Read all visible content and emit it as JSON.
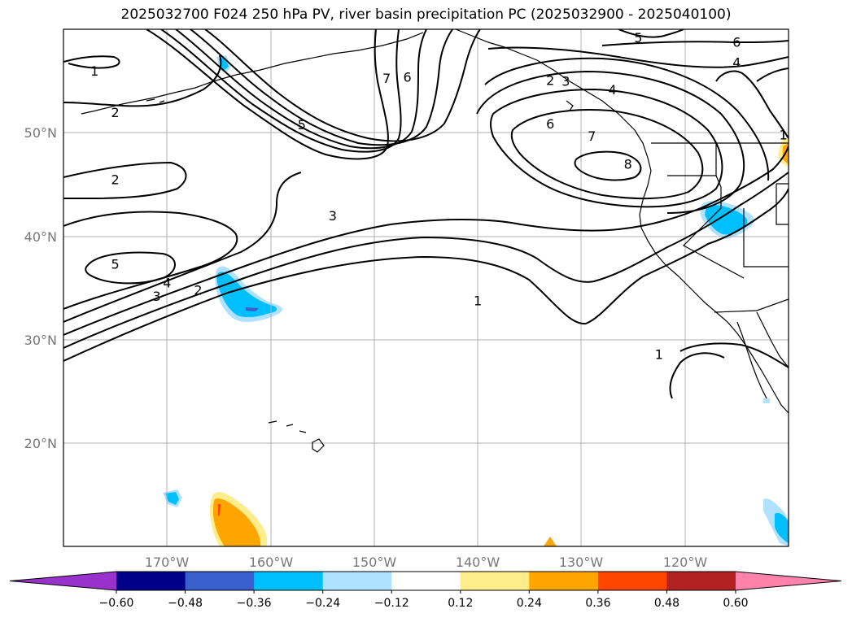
{
  "title": "2025032700 F024 250 hPa PV, river basin precipitation PC (2025032900 - 2025040100)",
  "map": {
    "lon_range": [
      -180,
      -110
    ],
    "lat_range": [
      10,
      60
    ],
    "lon_ticks": [
      {
        "value": -170,
        "label": "170°W"
      },
      {
        "value": -160,
        "label": "160°W"
      },
      {
        "value": -150,
        "label": "150°W"
      },
      {
        "value": -140,
        "label": "140°W"
      },
      {
        "value": -130,
        "label": "130°W"
      },
      {
        "value": -120,
        "label": "120°W"
      }
    ],
    "lat_ticks": [
      {
        "value": 20,
        "label": "20°N"
      },
      {
        "value": 30,
        "label": "30°N"
      },
      {
        "value": 40,
        "label": "40°N"
      },
      {
        "value": 50,
        "label": "50°N"
      }
    ],
    "gridlines": true,
    "contour_labels": [
      {
        "text": "1",
        "lon": -177,
        "lat": 56
      },
      {
        "text": "2",
        "lon": -175,
        "lat": 52
      },
      {
        "text": "2",
        "lon": -175,
        "lat": 45.5
      },
      {
        "text": "5",
        "lon": -175,
        "lat": 37.3
      },
      {
        "text": "4",
        "lon": -170,
        "lat": 35.5
      },
      {
        "text": "3",
        "lon": -171,
        "lat": 34.2
      },
      {
        "text": "2",
        "lon": -167,
        "lat": 34.8
      },
      {
        "text": "5",
        "lon": -157,
        "lat": 50.8
      },
      {
        "text": "3",
        "lon": -154,
        "lat": 42
      },
      {
        "text": "1",
        "lon": -140,
        "lat": 33.8
      },
      {
        "text": "7",
        "lon": -148.8,
        "lat": 55.3
      },
      {
        "text": "6",
        "lon": -146.8,
        "lat": 55.4
      },
      {
        "text": "2",
        "lon": -133,
        "lat": 55.1
      },
      {
        "text": "3",
        "lon": -131.5,
        "lat": 55
      },
      {
        "text": "4",
        "lon": -127,
        "lat": 54.2
      },
      {
        "text": "6",
        "lon": -133,
        "lat": 50.9
      },
      {
        "text": "7",
        "lon": -129,
        "lat": 49.7
      },
      {
        "text": "8",
        "lon": -125.5,
        "lat": 47
      },
      {
        "text": "5",
        "lon": -124.5,
        "lat": 59.2
      },
      {
        "text": "6",
        "lon": -115,
        "lat": 58.8
      },
      {
        "text": "4",
        "lon": -115,
        "lat": 56.8
      },
      {
        "text": "1",
        "lon": -110.5,
        "lat": 49.8
      },
      {
        "text": "1",
        "lon": -122.5,
        "lat": 28.6
      }
    ]
  },
  "colorbar": {
    "bounds": [
      -0.6,
      -0.48,
      -0.36,
      -0.24,
      -0.12,
      0.12,
      0.24,
      0.36,
      0.48,
      0.6
    ],
    "labels": [
      "−0.60",
      "−0.48",
      "−0.36",
      "−0.24",
      "−0.12",
      "0.12",
      "0.24",
      "0.36",
      "0.48",
      "0.60"
    ],
    "colors": [
      "#9932cc",
      "#00008b",
      "#3a5fcd",
      "#00bfff",
      "#b0e2ff",
      "#ffffff",
      "#ffec8b",
      "#ffa500",
      "#ff4500",
      "#b22222",
      "#ff82ab"
    ],
    "extend": "both"
  }
}
